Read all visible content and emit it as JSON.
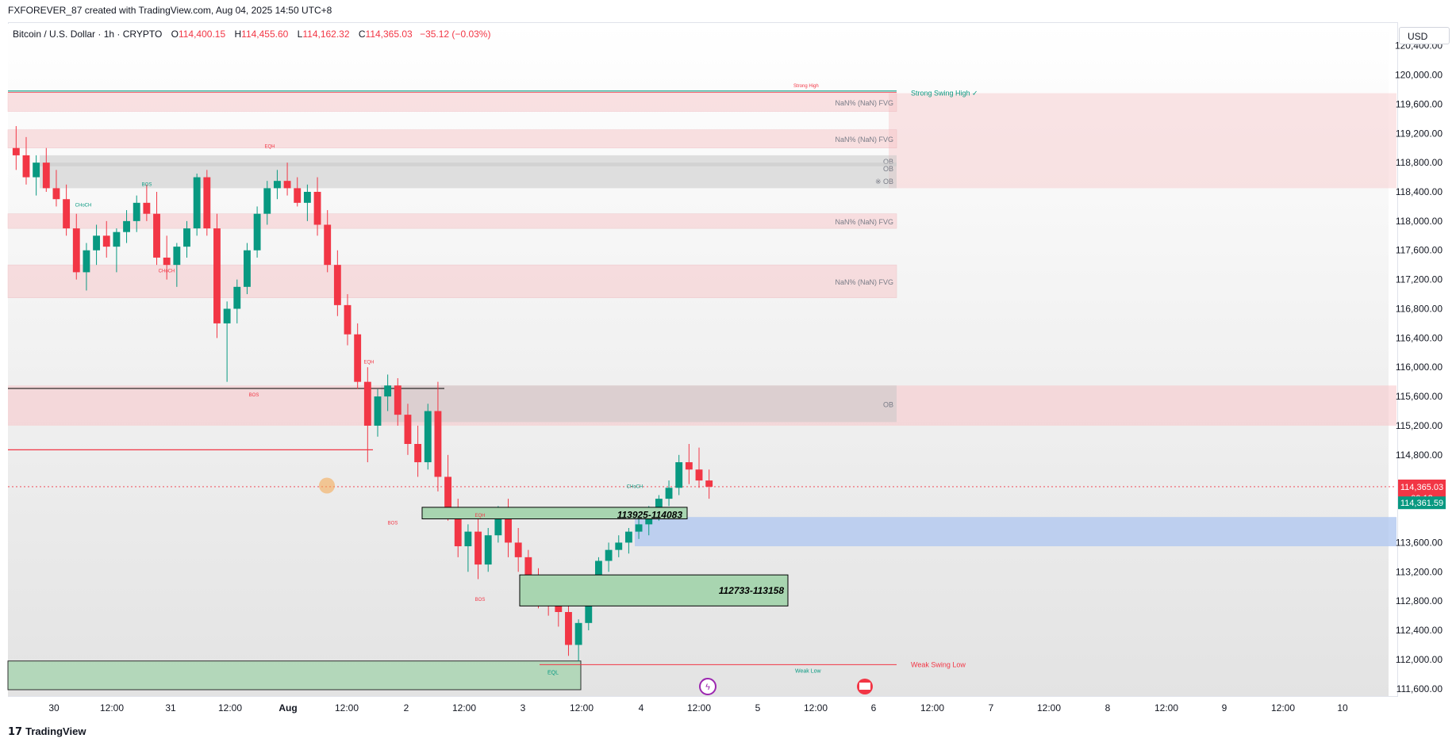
{
  "header": {
    "title": "FXFOREVER_87 created with TradingView.com, Aug 04, 2025 14:50 UTC+8"
  },
  "legend": {
    "symbol": "Bitcoin / U.S. Dollar · 1h · CRYPTO",
    "o_label": "O",
    "o": "114,400.15",
    "h_label": "H",
    "h": "114,455.60",
    "l_label": "L",
    "l": "114,162.32",
    "c_label": "C",
    "c": "114,365.03",
    "change": "−35.12 (−0.03%)"
  },
  "currency_button": "USD",
  "footer": {
    "brand": "TradingView"
  },
  "colors": {
    "up": "#089981",
    "down": "#f23645",
    "price_tag": "#f23645",
    "bid_tag": "#089981",
    "zone_red": "#f7c5c8",
    "zone_green": "#a8d5b0",
    "zone_blue": "#b2c8f0",
    "ob_gray": "#c8c8c8",
    "background": "#ffffff"
  },
  "icons": [
    "tradingview-logo-icon",
    "lightning-icon",
    "us-flag-icon"
  ],
  "chart_data": {
    "type": "candlestick",
    "y_axis": {
      "ticks": [
        "120,400.00",
        "120,000.00",
        "119,600.00",
        "119,200.00",
        "118,800.00",
        "118,400.00",
        "118,000.00",
        "117,600.00",
        "117,200.00",
        "116,800.00",
        "116,400.00",
        "116,000.00",
        "115,600.00",
        "115,200.00",
        "114,800.00",
        "113,600.00",
        "113,200.00",
        "112,800.00",
        "112,400.00",
        "112,000.00",
        "111,600.00"
      ],
      "range": [
        111500,
        120700
      ]
    },
    "x_axis": {
      "ticks": [
        "30",
        "12:00",
        "31",
        "12:00",
        "Aug",
        "12:00",
        "2",
        "12:00",
        "3",
        "12:00",
        "4",
        "12:00",
        "5",
        "12:00",
        "6",
        "12:00",
        "7",
        "12:00",
        "8",
        "12:00",
        "9",
        "12:00",
        "10"
      ]
    },
    "current_price": {
      "label": "114,365.03",
      "countdown": "09:13",
      "value": 114365
    },
    "bid_price": {
      "label": "114,361.59",
      "value": 114362
    },
    "candles_ohlc_approx": [
      [
        119000,
        119300,
        118700,
        118900
      ],
      [
        118900,
        119150,
        118500,
        118600
      ],
      [
        118600,
        118900,
        118350,
        118800
      ],
      [
        118800,
        119000,
        118400,
        118450
      ],
      [
        118450,
        118700,
        118200,
        118300
      ],
      [
        118300,
        118500,
        117800,
        117900
      ],
      [
        117900,
        118100,
        117200,
        117300
      ],
      [
        117300,
        117700,
        117050,
        117600
      ],
      [
        117600,
        117950,
        117400,
        117800
      ],
      [
        117800,
        118000,
        117500,
        117650
      ],
      [
        117650,
        117900,
        117300,
        117850
      ],
      [
        117850,
        118150,
        117700,
        118000
      ],
      [
        118000,
        118350,
        117850,
        118250
      ],
      [
        118250,
        118500,
        118000,
        118100
      ],
      [
        118100,
        118400,
        117400,
        117500
      ],
      [
        117500,
        117800,
        117200,
        117400
      ],
      [
        117400,
        117700,
        117100,
        117650
      ],
      [
        117650,
        118000,
        117500,
        117900
      ],
      [
        117900,
        118650,
        117800,
        118600
      ],
      [
        118600,
        118700,
        117800,
        117900
      ],
      [
        117900,
        118100,
        116400,
        116600
      ],
      [
        116600,
        116900,
        115800,
        116800
      ],
      [
        116800,
        117200,
        116600,
        117100
      ],
      [
        117100,
        117700,
        117000,
        117600
      ],
      [
        117600,
        118200,
        117500,
        118100
      ],
      [
        118100,
        118550,
        117950,
        118450
      ],
      [
        118450,
        118700,
        118300,
        118550
      ],
      [
        118550,
        118800,
        118350,
        118450
      ],
      [
        118450,
        118600,
        118200,
        118250
      ],
      [
        118250,
        118500,
        118000,
        118400
      ],
      [
        118400,
        118600,
        117800,
        117950
      ],
      [
        117950,
        118150,
        117300,
        117400
      ],
      [
        117400,
        117600,
        116700,
        116850
      ],
      [
        116850,
        117000,
        116300,
        116450
      ],
      [
        116450,
        116600,
        115700,
        115800
      ],
      [
        115800,
        116000,
        114700,
        115200
      ],
      [
        115200,
        115700,
        115050,
        115600
      ],
      [
        115600,
        115900,
        115400,
        115750
      ],
      [
        115750,
        115850,
        115200,
        115350
      ],
      [
        115350,
        115500,
        114800,
        114950
      ],
      [
        114950,
        115200,
        114500,
        114700
      ],
      [
        114700,
        115500,
        114600,
        115400
      ],
      [
        115400,
        115800,
        114300,
        114500
      ],
      [
        114500,
        114800,
        113900,
        114050
      ],
      [
        114050,
        114200,
        113400,
        113550
      ],
      [
        113550,
        113850,
        113200,
        113750
      ],
      [
        113750,
        114000,
        113100,
        113300
      ],
      [
        113300,
        113800,
        113200,
        113700
      ],
      [
        113700,
        114100,
        113600,
        114000
      ],
      [
        114000,
        114200,
        113400,
        113600
      ],
      [
        113600,
        113800,
        113200,
        113400
      ],
      [
        113400,
        113500,
        113000,
        113100
      ],
      [
        113100,
        113250,
        112700,
        112900
      ],
      [
        112900,
        113150,
        112600,
        112800
      ],
      [
        112800,
        112950,
        112450,
        112650
      ],
      [
        112650,
        112800,
        112050,
        112200
      ],
      [
        112200,
        112550,
        111980,
        112500
      ],
      [
        112500,
        113000,
        112400,
        112950
      ],
      [
        112950,
        113400,
        112900,
        113350
      ],
      [
        113350,
        113600,
        113200,
        113500
      ],
      [
        113500,
        113700,
        113400,
        113600
      ],
      [
        113600,
        113800,
        113450,
        113750
      ],
      [
        113750,
        113950,
        113650,
        113850
      ],
      [
        113850,
        114100,
        113700,
        114050
      ],
      [
        114050,
        114250,
        113900,
        114200
      ],
      [
        114200,
        114450,
        114100,
        114350
      ],
      [
        114350,
        114800,
        114250,
        114700
      ],
      [
        114700,
        114950,
        114400,
        114600
      ],
      [
        114600,
        114900,
        114350,
        114450
      ],
      [
        114450,
        114600,
        114200,
        114365
      ]
    ],
    "zones": [
      {
        "label": "NaN% (NaN) FVG",
        "top": 119750,
        "bottom": 119500
      },
      {
        "label": "NaN% (NaN) FVG",
        "top": 119250,
        "bottom": 119000
      },
      {
        "label": "OB",
        "top": 118900,
        "bottom": 118750
      },
      {
        "label": "OB",
        "top": 118800,
        "bottom": 118650
      },
      {
        "label": "※ OB",
        "top": 118650,
        "bottom": 118450
      },
      {
        "label": "NaN% (NaN) FVG",
        "top": 118100,
        "bottom": 117900
      },
      {
        "label": "NaN% (NaN) FVG",
        "top": 117400,
        "bottom": 116950
      },
      {
        "label": "OB",
        "top": 115750,
        "bottom": 115250
      }
    ],
    "annotations": {
      "strong_high": "Strong High",
      "strong_swing_high": "Strong Swing High ✓",
      "weak_swing_low": "Weak Swing Low",
      "weak_low": "Weak Low",
      "eql": "EQL",
      "eqh": "EQH",
      "bos": "BOS",
      "choch": "CHoCH",
      "box1": "113925-114083",
      "box2": "112733-113158"
    }
  }
}
